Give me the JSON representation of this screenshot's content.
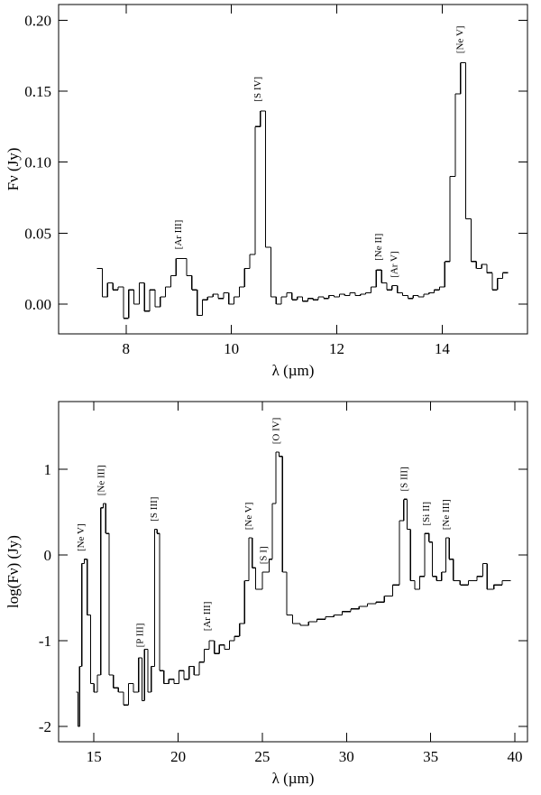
{
  "chart_data": [
    {
      "type": "line",
      "xlabel": "λ (µm)",
      "ylabel": "Fν (Jy)",
      "color": "#000000",
      "xlim": [
        6.72,
        15.62
      ],
      "ylim": [
        -0.021,
        0.211
      ],
      "xticks": [
        8,
        10,
        12,
        14
      ],
      "yticks": [
        {
          "value": 0,
          "label": "0.00"
        },
        {
          "value": 0.05,
          "label": "0.05"
        },
        {
          "value": 0.1,
          "label": "0.10"
        },
        {
          "value": 0.15,
          "label": "0.15"
        },
        {
          "value": 0.2,
          "label": "0.20"
        }
      ],
      "x": [
        7.5,
        7.6,
        7.7,
        7.8,
        7.9,
        8.0,
        8.1,
        8.2,
        8.3,
        8.4,
        8.5,
        8.6,
        8.7,
        8.8,
        8.9,
        9.0,
        9.1,
        9.2,
        9.3,
        9.4,
        9.5,
        9.6,
        9.7,
        9.8,
        9.9,
        10.0,
        10.1,
        10.2,
        10.3,
        10.4,
        10.5,
        10.6,
        10.7,
        10.8,
        10.9,
        11.0,
        11.1,
        11.2,
        11.3,
        11.4,
        11.5,
        11.6,
        11.7,
        11.8,
        11.9,
        12.0,
        12.1,
        12.2,
        12.3,
        12.4,
        12.5,
        12.6,
        12.7,
        12.8,
        12.9,
        13.0,
        13.1,
        13.2,
        13.3,
        13.4,
        13.5,
        13.6,
        13.7,
        13.8,
        13.9,
        14.0,
        14.1,
        14.2,
        14.3,
        14.4,
        14.5,
        14.6,
        14.7,
        14.8,
        14.9,
        15.0,
        15.1,
        15.2
      ],
      "values": [
        0.025,
        0.005,
        0.015,
        0.01,
        0.012,
        -0.01,
        0.01,
        0.0,
        0.015,
        -0.005,
        0.01,
        -0.002,
        0.005,
        0.012,
        0.02,
        0.032,
        0.032,
        0.02,
        0.01,
        -0.008,
        0.003,
        0.005,
        0.007,
        0.004,
        0.008,
        0.0,
        0.005,
        0.012,
        0.025,
        0.035,
        0.125,
        0.136,
        0.04,
        0.005,
        0.0,
        0.005,
        0.008,
        0.003,
        0.005,
        0.002,
        0.004,
        0.003,
        0.005,
        0.004,
        0.006,
        0.005,
        0.007,
        0.006,
        0.008,
        0.006,
        0.007,
        0.008,
        0.012,
        0.024,
        0.015,
        0.01,
        0.013,
        0.008,
        0.006,
        0.004,
        0.006,
        0.005,
        0.007,
        0.008,
        0.01,
        0.012,
        0.03,
        0.09,
        0.148,
        0.17,
        0.06,
        0.03,
        0.025,
        0.028,
        0.022,
        0.01,
        0.018,
        0.022
      ],
      "annotations": [
        {
          "text": "[Ar III]",
          "x": 9.05,
          "y": 0.036
        },
        {
          "text": "[S IV]",
          "x": 10.55,
          "y": 0.14
        },
        {
          "text": "[Ne II]",
          "x": 12.85,
          "y": 0.028
        },
        {
          "text": "[Ar V]",
          "x": 13.15,
          "y": 0.016
        },
        {
          "text": "[Ne V]",
          "x": 14.4,
          "y": 0.174
        }
      ]
    },
    {
      "type": "line",
      "xlabel": "λ (µm)",
      "ylabel": "log(Fν) (Jy)",
      "color": "#000000",
      "xlim": [
        12.9,
        40.75
      ],
      "ylim": [
        -2.18,
        1.79
      ],
      "xticks": [
        15,
        20,
        25,
        30,
        35,
        40
      ],
      "yticks": [
        -2,
        -1,
        0,
        1
      ],
      "x": [
        14.0,
        14.1,
        14.2,
        14.35,
        14.5,
        14.7,
        14.9,
        15.1,
        15.3,
        15.5,
        15.6,
        15.8,
        16.0,
        16.3,
        16.6,
        16.9,
        17.2,
        17.5,
        17.8,
        17.9,
        18.1,
        18.3,
        18.5,
        18.7,
        18.8,
        19.0,
        19.3,
        19.6,
        19.9,
        20.2,
        20.5,
        20.8,
        21.1,
        21.4,
        21.7,
        22.0,
        22.3,
        22.6,
        22.9,
        23.2,
        23.5,
        23.8,
        24.1,
        24.3,
        24.5,
        24.7,
        24.9,
        25.1,
        25.3,
        25.5,
        25.7,
        25.9,
        26.1,
        26.3,
        26.6,
        27.0,
        27.5,
        28.0,
        28.5,
        29.0,
        29.5,
        30.0,
        30.5,
        31.0,
        31.5,
        32.0,
        32.5,
        33.0,
        33.3,
        33.5,
        33.7,
        33.9,
        34.2,
        34.5,
        34.8,
        35.0,
        35.2,
        35.5,
        35.8,
        36.0,
        36.2,
        36.5,
        37.0,
        37.5,
        38.0,
        38.2,
        38.5,
        39.0,
        39.5
      ],
      "values": [
        -1.6,
        -2.0,
        -1.3,
        -0.1,
        -0.05,
        -0.7,
        -1.5,
        -1.6,
        -1.4,
        0.55,
        0.6,
        0.25,
        -1.4,
        -1.55,
        -1.6,
        -1.75,
        -1.5,
        -1.6,
        -1.2,
        -1.7,
        -1.1,
        -1.6,
        -1.3,
        0.3,
        0.25,
        -1.35,
        -1.5,
        -1.45,
        -1.5,
        -1.35,
        -1.45,
        -1.3,
        -1.4,
        -1.25,
        -1.1,
        -1.0,
        -1.15,
        -1.05,
        -1.1,
        -1.0,
        -0.95,
        -0.8,
        -0.3,
        0.2,
        -0.15,
        -0.4,
        -0.4,
        -0.2,
        -0.2,
        -0.05,
        0.6,
        1.2,
        1.15,
        -0.2,
        -0.7,
        -0.8,
        -0.82,
        -0.78,
        -0.75,
        -0.72,
        -0.7,
        -0.66,
        -0.63,
        -0.6,
        -0.57,
        -0.55,
        -0.48,
        -0.35,
        0.4,
        0.65,
        0.3,
        -0.3,
        -0.4,
        -0.25,
        0.25,
        0.15,
        -0.25,
        -0.3,
        -0.2,
        0.2,
        -0.05,
        -0.3,
        -0.35,
        -0.3,
        -0.25,
        -0.1,
        -0.4,
        -0.35,
        -0.3
      ],
      "annotations": [
        {
          "text": "[Ne V]",
          "x": 14.4,
          "y": 0.0
        },
        {
          "text": "[Ne III]",
          "x": 15.6,
          "y": 0.65
        },
        {
          "text": "[P III]",
          "x": 17.9,
          "y": -1.12
        },
        {
          "text": "[S III]",
          "x": 18.75,
          "y": 0.35
        },
        {
          "text": "[Ar III]",
          "x": 21.9,
          "y": -0.93
        },
        {
          "text": "[Ne V]",
          "x": 24.35,
          "y": 0.25
        },
        {
          "text": "[S I]",
          "x": 25.25,
          "y": -0.15
        },
        {
          "text": "[O IV]",
          "x": 26.0,
          "y": 1.25
        },
        {
          "text": "[S III]",
          "x": 33.6,
          "y": 0.7
        },
        {
          "text": "[Si II]",
          "x": 34.9,
          "y": 0.3
        },
        {
          "text": "[Ne III]",
          "x": 36.1,
          "y": 0.25
        }
      ]
    }
  ]
}
